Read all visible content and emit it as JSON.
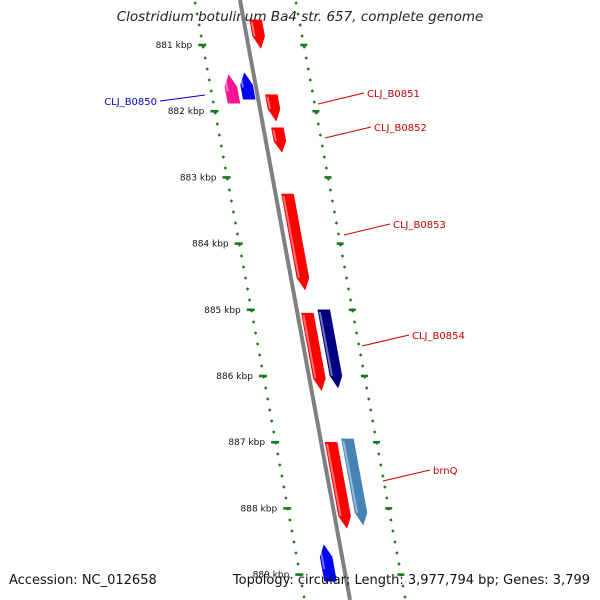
{
  "title": "Clostridium botulinum Ba4 str. 657, complete genome",
  "footer": {
    "accession": "Accession: NC_012658",
    "topology": "Topology: circular; Length: 3,977,794 bp; Genes: 3,799"
  },
  "ruler": {
    "unit": "kbp",
    "ticks": [
      "881 kbp",
      "882 kbp",
      "883 kbp",
      "884 kbp",
      "885 kbp",
      "886 kbp",
      "887 kbp",
      "888 kbp",
      "889 kbp"
    ]
  },
  "features": [
    {
      "id": "f0",
      "label": "",
      "strand": "forward",
      "color": "#ff0000",
      "start_kbp": 880.62,
      "end_kbp": 881.05
    },
    {
      "id": "CLJ_B0850a",
      "label": "",
      "strand": "reverse",
      "color": "#ff1493",
      "start_kbp": 881.45,
      "end_kbp": 881.88
    },
    {
      "id": "CLJ_B0850",
      "label": "CLJ_B0850",
      "strand": "reverse",
      "color": "#0000ff",
      "start_kbp": 881.42,
      "end_kbp": 881.82
    },
    {
      "id": "CLJ_B0851",
      "label": "CLJ_B0851",
      "strand": "forward",
      "color": "#ff0000",
      "start_kbp": 881.75,
      "end_kbp": 882.15
    },
    {
      "id": "CLJ_B0852",
      "label": "CLJ_B0852",
      "strand": "forward",
      "color": "#ff0000",
      "start_kbp": 882.25,
      "end_kbp": 882.62
    },
    {
      "id": "CLJ_B0853",
      "label": "CLJ_B0853",
      "strand": "forward",
      "color": "#ff0000",
      "start_kbp": 883.25,
      "end_kbp": 884.7
    },
    {
      "id": "CLJ_B0854",
      "label": "CLJ_B0854",
      "strand": "forward",
      "color": "#ff0000",
      "start_kbp": 885.05,
      "end_kbp": 886.22
    },
    {
      "id": "CLJ_B0854b",
      "label": "",
      "strand": "forward",
      "color": "#000080",
      "start_kbp": 885.0,
      "end_kbp": 886.18
    },
    {
      "id": "f8",
      "label": "",
      "strand": "forward",
      "color": "#ff0000",
      "start_kbp": 887.0,
      "end_kbp": 888.3
    },
    {
      "id": "brnQ",
      "label": "brnQ",
      "strand": "forward",
      "color": "#4682b4",
      "start_kbp": 886.95,
      "end_kbp": 888.25
    },
    {
      "id": "f10",
      "label": "",
      "strand": "reverse",
      "color": "#0000ff",
      "start_kbp": 888.55,
      "end_kbp": 889.1
    }
  ],
  "colors": {
    "backbone": "#808080",
    "tick": "#1a7a1a",
    "label_forward": "#cc0000",
    "label_reverse": "#0000cc"
  }
}
